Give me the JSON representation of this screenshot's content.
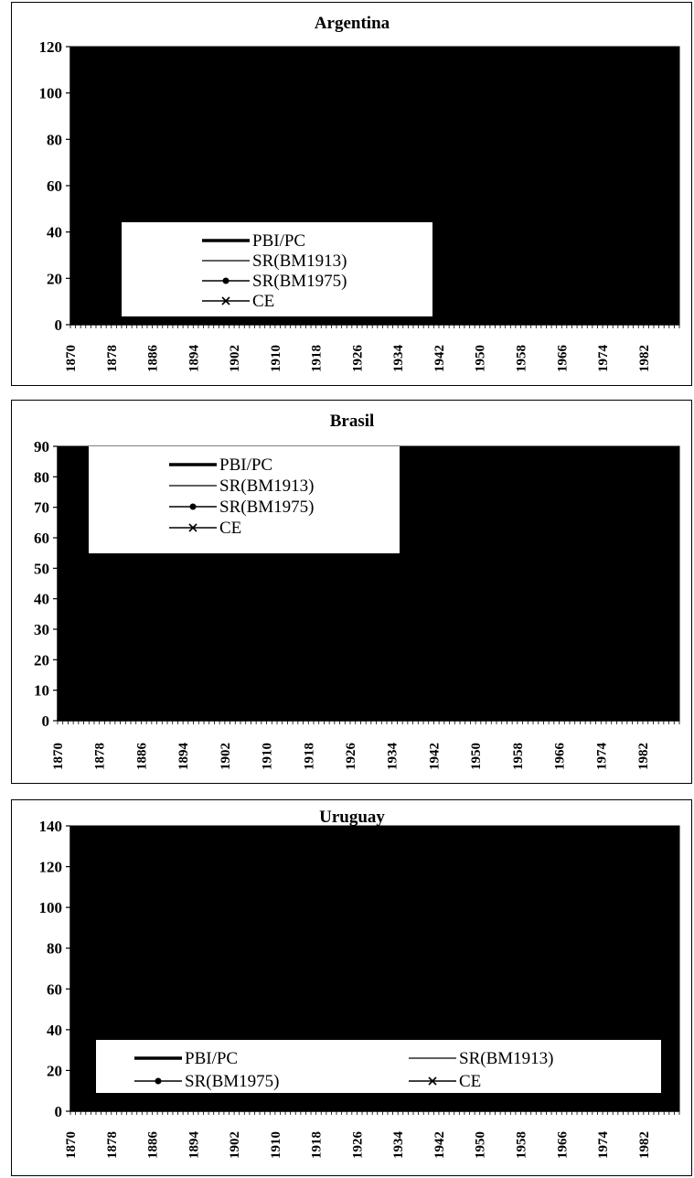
{
  "chart_data": [
    {
      "type": "area",
      "title": "Argentina",
      "xlabel": "",
      "ylabel": "",
      "ylim": [
        0,
        120
      ],
      "yticks": [
        0,
        20,
        40,
        60,
        80,
        100,
        120
      ],
      "xlim": [
        1870,
        1989
      ],
      "xticks": [
        1870,
        1878,
        1886,
        1894,
        1902,
        1910,
        1918,
        1926,
        1934,
        1942,
        1950,
        1958,
        1966,
        1974,
        1982
      ],
      "legend_position": "lower-left",
      "legend_columns": 1,
      "series": [
        {
          "name": "PBI/PC",
          "style": "thick",
          "x": [
            1870,
            1989
          ],
          "values": [
            120,
            120
          ]
        },
        {
          "name": "SR(BM1913)",
          "style": "thin",
          "x": [
            1870,
            1989
          ],
          "values": [
            120,
            120
          ]
        },
        {
          "name": "SR(BM1975)",
          "style": "dot",
          "x": [
            1870,
            1989
          ],
          "values": [
            120,
            120
          ]
        },
        {
          "name": "CE",
          "style": "cross",
          "x": [
            1870,
            1989
          ],
          "values": [
            120,
            120
          ]
        }
      ]
    },
    {
      "type": "area",
      "title": "Brasil",
      "xlabel": "",
      "ylabel": "",
      "ylim": [
        0,
        90
      ],
      "yticks": [
        0,
        10,
        20,
        30,
        40,
        50,
        60,
        70,
        80,
        90
      ],
      "xlim": [
        1870,
        1989
      ],
      "xticks": [
        1870,
        1878,
        1886,
        1894,
        1902,
        1910,
        1918,
        1926,
        1934,
        1942,
        1950,
        1958,
        1966,
        1974,
        1982
      ],
      "legend_position": "upper-left",
      "legend_columns": 1,
      "series": [
        {
          "name": "PBI/PC",
          "style": "thick",
          "x": [
            1870,
            1989
          ],
          "values": [
            90,
            90
          ]
        },
        {
          "name": "SR(BM1913)",
          "style": "thin",
          "x": [
            1870,
            1989
          ],
          "values": [
            90,
            90
          ]
        },
        {
          "name": "SR(BM1975)",
          "style": "dot",
          "x": [
            1870,
            1989
          ],
          "values": [
            90,
            90
          ]
        },
        {
          "name": "CE",
          "style": "cross",
          "x": [
            1870,
            1989
          ],
          "values": [
            90,
            90
          ]
        }
      ]
    },
    {
      "type": "area",
      "title": "Uruguay",
      "xlabel": "",
      "ylabel": "",
      "ylim": [
        0,
        140
      ],
      "yticks": [
        0,
        20,
        40,
        60,
        80,
        100,
        120,
        140
      ],
      "xlim": [
        1870,
        1989
      ],
      "xticks": [
        1870,
        1878,
        1886,
        1894,
        1902,
        1910,
        1918,
        1926,
        1934,
        1942,
        1950,
        1958,
        1966,
        1974,
        1982
      ],
      "legend_position": "bottom",
      "legend_columns": 2,
      "series": [
        {
          "name": "PBI/PC",
          "style": "thick",
          "x": [
            1870,
            1989
          ],
          "values": [
            140,
            140
          ]
        },
        {
          "name": "SR(BM1913)",
          "style": "thin",
          "x": [
            1870,
            1989
          ],
          "values": [
            140,
            140
          ]
        },
        {
          "name": "SR(BM1975)",
          "style": "dot",
          "x": [
            1870,
            1989
          ],
          "values": [
            140,
            140
          ]
        },
        {
          "name": "CE",
          "style": "cross",
          "x": [
            1870,
            1989
          ],
          "values": [
            140,
            140
          ]
        }
      ]
    }
  ],
  "colors": {
    "plot_fill": "#000000",
    "legend_background": "#ffffff",
    "text": "#000000"
  }
}
